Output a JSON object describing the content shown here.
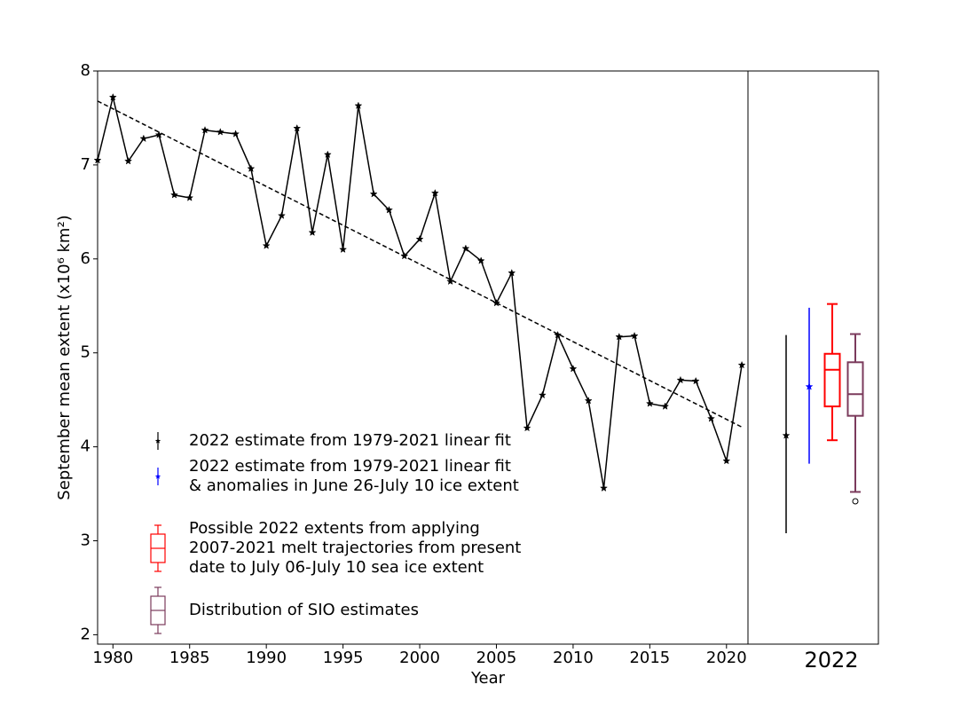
{
  "chart_data": {
    "type": "line",
    "x_label": "Year",
    "y_label": "September mean extent (x10⁶ km²)",
    "xlim": [
      1979,
      2021.4
    ],
    "ylim": [
      1.9,
      8
    ],
    "xticks": [
      1980,
      1985,
      1990,
      1995,
      2000,
      2005,
      2010,
      2015,
      2020
    ],
    "yticks": [
      2,
      3,
      4,
      5,
      6,
      7,
      8
    ],
    "x": [
      1979,
      1980,
      1981,
      1982,
      1983,
      1984,
      1985,
      1986,
      1987,
      1988,
      1989,
      1990,
      1991,
      1992,
      1993,
      1994,
      1995,
      1996,
      1997,
      1998,
      1999,
      2000,
      2001,
      2002,
      2003,
      2004,
      2005,
      2006,
      2007,
      2008,
      2009,
      2010,
      2011,
      2012,
      2013,
      2014,
      2015,
      2016,
      2017,
      2018,
      2019,
      2020,
      2021
    ],
    "values": [
      7.05,
      7.72,
      7.04,
      7.28,
      7.32,
      6.68,
      6.65,
      7.37,
      7.35,
      7.33,
      6.96,
      6.14,
      6.46,
      7.39,
      6.28,
      7.11,
      6.1,
      7.63,
      6.69,
      6.52,
      6.03,
      6.21,
      6.7,
      5.76,
      6.11,
      5.98,
      5.53,
      5.85,
      4.2,
      4.55,
      5.19,
      4.83,
      4.49,
      3.56,
      5.17,
      5.18,
      4.46,
      4.43,
      4.71,
      4.7,
      4.3,
      3.85,
      4.87
    ],
    "color": "#000000",
    "trend": {
      "x": [
        1979,
        2021
      ],
      "values": [
        7.68,
        4.21
      ]
    },
    "panel_label": "2022",
    "estimates": [
      {
        "name": [
          "2022 estimate from 1979-2021 linear fit"
        ],
        "value": 4.12,
        "low": 3.08,
        "high": 5.19,
        "color": "#000000"
      },
      {
        "name": [
          "2022 estimate from 1979-2021 linear fit",
          "& anomalies in June 26-July 10 ice extent"
        ],
        "value": 4.64,
        "low": 3.82,
        "high": 5.48,
        "color": "#0000ff"
      }
    ],
    "boxes": [
      {
        "name": [
          "Possible 2022 extents from applying",
          "2007-2021 melt trajectories from present",
          "date to July 06-July 10 sea ice extent"
        ],
        "whisker_low": 4.07,
        "q1": 4.43,
        "median": 4.82,
        "q3": 4.99,
        "whisker_high": 5.52,
        "outliers": [],
        "color": "#ff0000"
      },
      {
        "name": [
          "Distribution of SIO estimates"
        ],
        "whisker_low": 3.52,
        "q1": 4.33,
        "median": 4.56,
        "q3": 4.9,
        "whisker_high": 5.2,
        "outliers": [
          3.42
        ],
        "color": "#7b3b5c"
      }
    ]
  }
}
